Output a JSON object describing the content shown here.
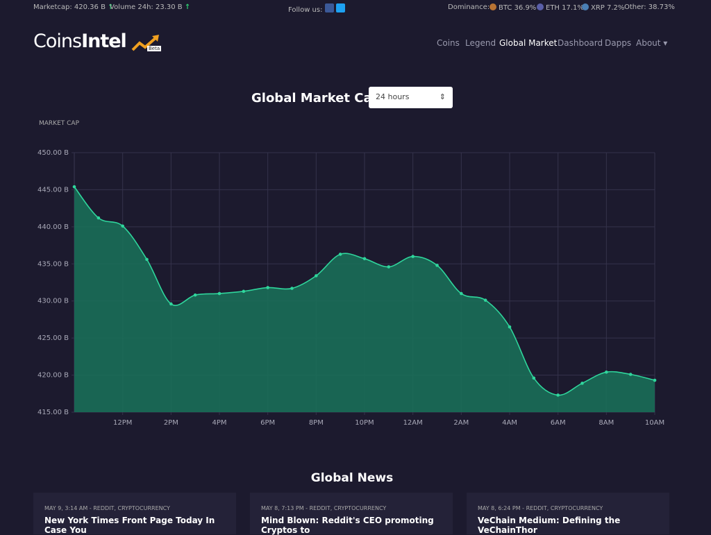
{
  "top_bar": {
    "marketcap": "Marketcap: 420.36 B",
    "volume": "Volume 24h: 23.30 B",
    "follow": "Follow us:",
    "dominance": "Dominance:",
    "btc": "BTC 36.9%",
    "eth": "ETH 17.1%",
    "xrp": "XRP 7.2%",
    "other": "Other: 38.73%"
  },
  "logo": {
    "name_light": "Coins",
    "name_bold": "Intel",
    "badge": "Beta"
  },
  "nav": [
    "Coins",
    "Legend",
    "Global Market",
    "Dashboard",
    "Dapps",
    "About"
  ],
  "select": "24 hours",
  "chart_data": {
    "type": "area",
    "title": "Global Market Cap",
    "y_label": "MARKET CAP",
    "categories": [
      null,
      null,
      "12PM",
      null,
      "2PM",
      null,
      "4PM",
      null,
      "6PM",
      null,
      "8PM",
      null,
      "10PM",
      null,
      "12AM",
      null,
      "2AM",
      null,
      "4AM",
      null,
      "6AM",
      null,
      "8AM",
      null,
      "10AM"
    ],
    "values": [
      445.4,
      441.2,
      440.1,
      435.6,
      429.6,
      430.8,
      431.0,
      431.3,
      431.8,
      431.7,
      433.4,
      436.3,
      435.7,
      434.6,
      436.0,
      434.8,
      431.0,
      430.1,
      426.5,
      419.6,
      417.3,
      418.9,
      420.4,
      420.1,
      419.3
    ],
    "color": "#2fd69c",
    "fill": "#1a6e58",
    "ylim": [
      415,
      450
    ],
    "yticks": [
      {
        "value": 415,
        "label": "415.00 B"
      },
      {
        "value": 420,
        "label": "420.00 B"
      },
      {
        "value": 425,
        "label": "425.00 B"
      },
      {
        "value": 430,
        "label": "430.00 B"
      },
      {
        "value": 435,
        "label": "435.00 B"
      },
      {
        "value": 440,
        "label": "440.00 B"
      },
      {
        "value": 445,
        "label": "445.00 B"
      },
      {
        "value": 450,
        "label": "450.00 B"
      }
    ],
    "grid": true
  },
  "news": {
    "title": "Global News",
    "items": [
      {
        "meta": "MAY 9, 3:14 AM - REDDIT, CRYPTOCURRENCY",
        "title": "New York Times Front Page Today In Case You"
      },
      {
        "meta": "MAY 8, 7:13 PM - REDDIT, CRYPTOCURRENCY",
        "title": "Mind Blown: Reddit's CEO promoting Cryptos to"
      },
      {
        "meta": "MAY 8, 6:24 PM - REDDIT, CRYPTOCURRENCY",
        "title": "VeChain Medium: Defining the VeChainThor"
      }
    ]
  }
}
